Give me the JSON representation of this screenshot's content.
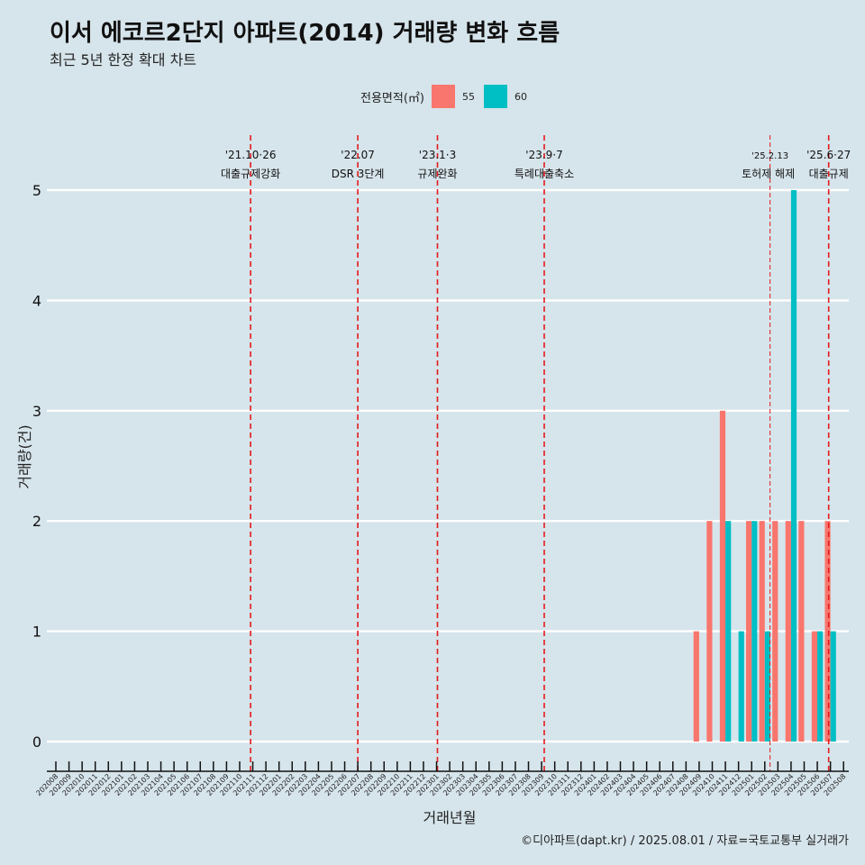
{
  "title": "이서 에코르2단지 아파트(2014) 거래량 변화 흐름",
  "subtitle": "최근 5년 한정 확대 차트",
  "caption": "©디아파트(dapt.kr) / 2025.08.01 / 자료=국토교통부 실거래가",
  "colors": {
    "55": "#f8766d",
    "60": "#00bfc4",
    "event_line": "#e41a1c",
    "background": "#d6e4eb",
    "grid": "#ffffff"
  },
  "chart_data": {
    "type": "bar",
    "xlabel": "거래년월",
    "ylabel": "거래량(건)",
    "legend": {
      "title": "전용면적(㎡)",
      "position": "top"
    },
    "ylim": [
      0,
      5
    ],
    "yticks": [
      0,
      1,
      2,
      3,
      4,
      5
    ],
    "categories": [
      "202008",
      "202009",
      "202010",
      "202011",
      "202012",
      "202101",
      "202102",
      "202103",
      "202104",
      "202105",
      "202106",
      "202107",
      "202108",
      "202109",
      "202110",
      "202111",
      "202112",
      "202201",
      "202202",
      "202203",
      "202204",
      "202205",
      "202206",
      "202207",
      "202208",
      "202209",
      "202210",
      "202211",
      "202212",
      "202301",
      "202302",
      "202303",
      "202304",
      "202305",
      "202306",
      "202307",
      "202308",
      "202309",
      "202310",
      "202311",
      "202312",
      "202401",
      "202402",
      "202403",
      "202404",
      "202405",
      "202406",
      "202407",
      "202408",
      "202409",
      "202410",
      "202411",
      "202412",
      "202501",
      "202502",
      "202503",
      "202504",
      "202505",
      "202506",
      "202507",
      "202508"
    ],
    "series": [
      {
        "name": "55",
        "points": [
          [
            "202409",
            1
          ],
          [
            "202410",
            2
          ],
          [
            "202411",
            3
          ],
          [
            "202501",
            2
          ],
          [
            "202502",
            2
          ],
          [
            "202503",
            2
          ],
          [
            "202504",
            2
          ],
          [
            "202505",
            2
          ],
          [
            "202506",
            1
          ],
          [
            "202507",
            2
          ]
        ]
      },
      {
        "name": "60",
        "points": [
          [
            "202411",
            2
          ],
          [
            "202412",
            1
          ],
          [
            "202501",
            2
          ],
          [
            "202502",
            1
          ],
          [
            "202504",
            5
          ],
          [
            "202506",
            1
          ],
          [
            "202507",
            1
          ]
        ]
      }
    ],
    "events": [
      {
        "date": "'21.10·26",
        "label": "대출규제강화",
        "month": "202110",
        "day": 26,
        "style": "major"
      },
      {
        "date": "'22.07",
        "label": "DSR 3단계",
        "month": "202207",
        "day": 1,
        "style": "major"
      },
      {
        "date": "'23.1·3",
        "label": "규제완화",
        "month": "202301",
        "day": 3,
        "style": "major"
      },
      {
        "date": "'23.9·7",
        "label": "특례대출축소",
        "month": "202309",
        "day": 7,
        "style": "major"
      },
      {
        "date": "'25.2.13",
        "label": "토허제 해제",
        "month": "202502",
        "day": 13,
        "style": "minor"
      },
      {
        "date": "'25.6·27",
        "label": "대출규제",
        "month": "202506",
        "day": 27,
        "style": "major"
      }
    ]
  }
}
